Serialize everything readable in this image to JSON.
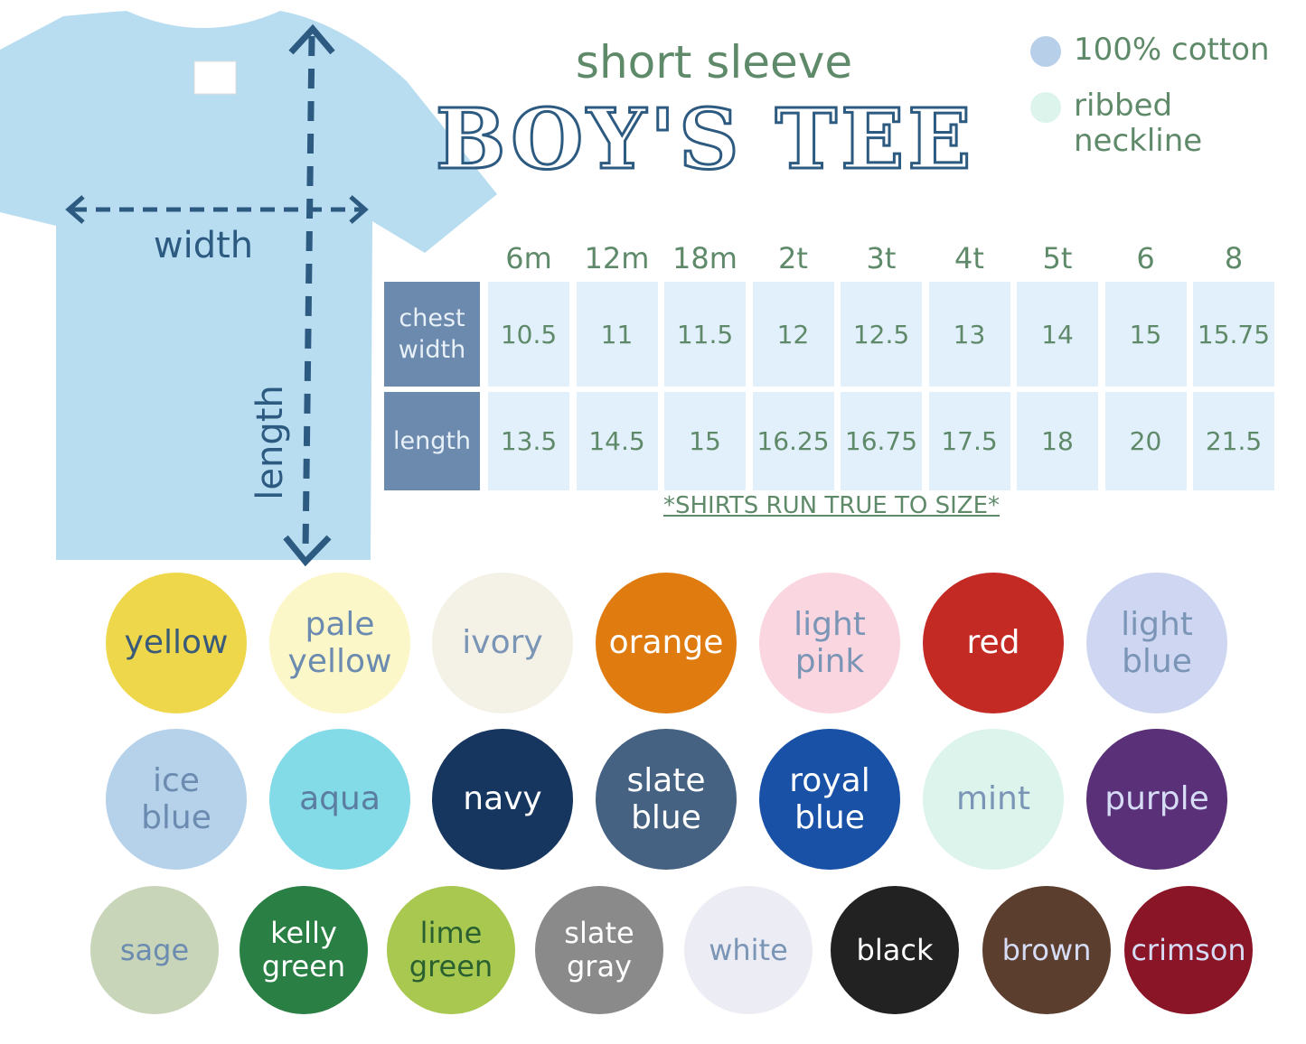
{
  "header": {
    "subtitle": "short sleeve",
    "title": "BOY'S TEE"
  },
  "features": [
    {
      "label": "100% cotton",
      "color": "#b7cfe9"
    },
    {
      "label": "ribbed neckline",
      "color": "#dcf4ec"
    }
  ],
  "diagram": {
    "width_label": "width",
    "length_label": "length"
  },
  "table": {
    "sizes": [
      "6m",
      "12m",
      "18m",
      "2t",
      "3t",
      "4t",
      "5t",
      "6",
      "8"
    ],
    "rows": [
      {
        "label": "chest width",
        "values": [
          "10.5",
          "11",
          "11.5",
          "12",
          "12.5",
          "13",
          "14",
          "15",
          "15.75"
        ]
      },
      {
        "label": "length",
        "values": [
          "13.5",
          "14.5",
          "15",
          "16.25",
          "16.75",
          "17.5",
          "18",
          "20",
          "21.5"
        ]
      }
    ],
    "note": "*SHIRTS RUN TRUE TO SIZE*"
  },
  "swatches": [
    [
      {
        "name": "yellow",
        "color": "#eed74a",
        "text": "#3a5a7a"
      },
      {
        "name": "pale yellow",
        "color": "#fcf7c8",
        "text": "#6b8bb0"
      },
      {
        "name": "ivory",
        "color": "#f4f2e6",
        "text": "#7a95b5"
      },
      {
        "name": "orange",
        "color": "#e07b10",
        "text": "#ffffff"
      },
      {
        "name": "light pink",
        "color": "#fad6e0",
        "text": "#7a95b5"
      },
      {
        "name": "red",
        "color": "#c42a24",
        "text": "#ffffff"
      },
      {
        "name": "light blue",
        "color": "#cfd6f2",
        "text": "#7a95b5"
      }
    ],
    [
      {
        "name": "ice blue",
        "color": "#b6d2ea",
        "text": "#6b8bb0"
      },
      {
        "name": "aqua",
        "color": "#84dbe8",
        "text": "#5a7da0"
      },
      {
        "name": "navy",
        "color": "#163660",
        "text": "#ffffff"
      },
      {
        "name": "slate blue",
        "color": "#466283",
        "text": "#ffffff"
      },
      {
        "name": "royal blue",
        "color": "#1851a6",
        "text": "#ffffff"
      },
      {
        "name": "mint",
        "color": "#dcf4ec",
        "text": "#7a95b5"
      },
      {
        "name": "purple",
        "color": "#5a3078",
        "text": "#d6dcf5"
      }
    ],
    [
      {
        "name": "sage",
        "color": "#c8d5b8",
        "text": "#6b8bb0"
      },
      {
        "name": "kelly green",
        "color": "#2a8044",
        "text": "#ffffff"
      },
      {
        "name": "lime green",
        "color": "#a8c850",
        "text": "#2a6030"
      },
      {
        "name": "slate gray",
        "color": "#8a8a8a",
        "text": "#ffffff"
      },
      {
        "name": "white",
        "color": "#ececf4",
        "text": "#7a95b5"
      },
      {
        "name": "black",
        "color": "#222222",
        "text": "#ffffff"
      },
      {
        "name": "brown",
        "color": "#5c3e2e",
        "text": "#d6dcf5"
      },
      {
        "name": "crimson",
        "color": "#8a1526",
        "text": "#d6dcf5"
      }
    ]
  ]
}
